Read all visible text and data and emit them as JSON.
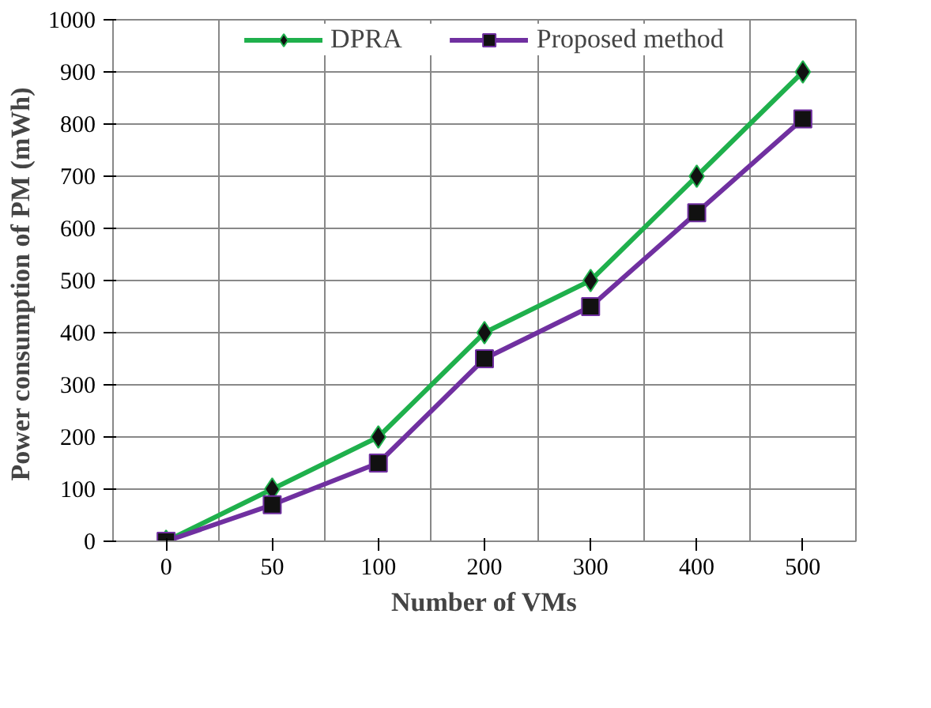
{
  "chart_data": {
    "type": "line",
    "xlabel": "Number of VMs",
    "ylabel": "Power consumption of PM  (mWh)",
    "categories": [
      "0",
      "50",
      "100",
      "200",
      "300",
      "400",
      "500"
    ],
    "series": [
      {
        "name": "DPRA",
        "color": "#1fb04c",
        "marker": "diamond",
        "values": [
          0,
          100,
          200,
          400,
          500,
          700,
          900
        ]
      },
      {
        "name": "Proposed method",
        "color": "#7030a0",
        "marker": "square",
        "values": [
          0,
          70,
          150,
          350,
          450,
          630,
          810
        ]
      }
    ],
    "ylim": [
      0,
      1000
    ],
    "yticks": [
      0,
      100,
      200,
      300,
      400,
      500,
      600,
      700,
      800,
      900,
      1000
    ],
    "grid": true,
    "legend": "top",
    "line_style": "solid"
  }
}
